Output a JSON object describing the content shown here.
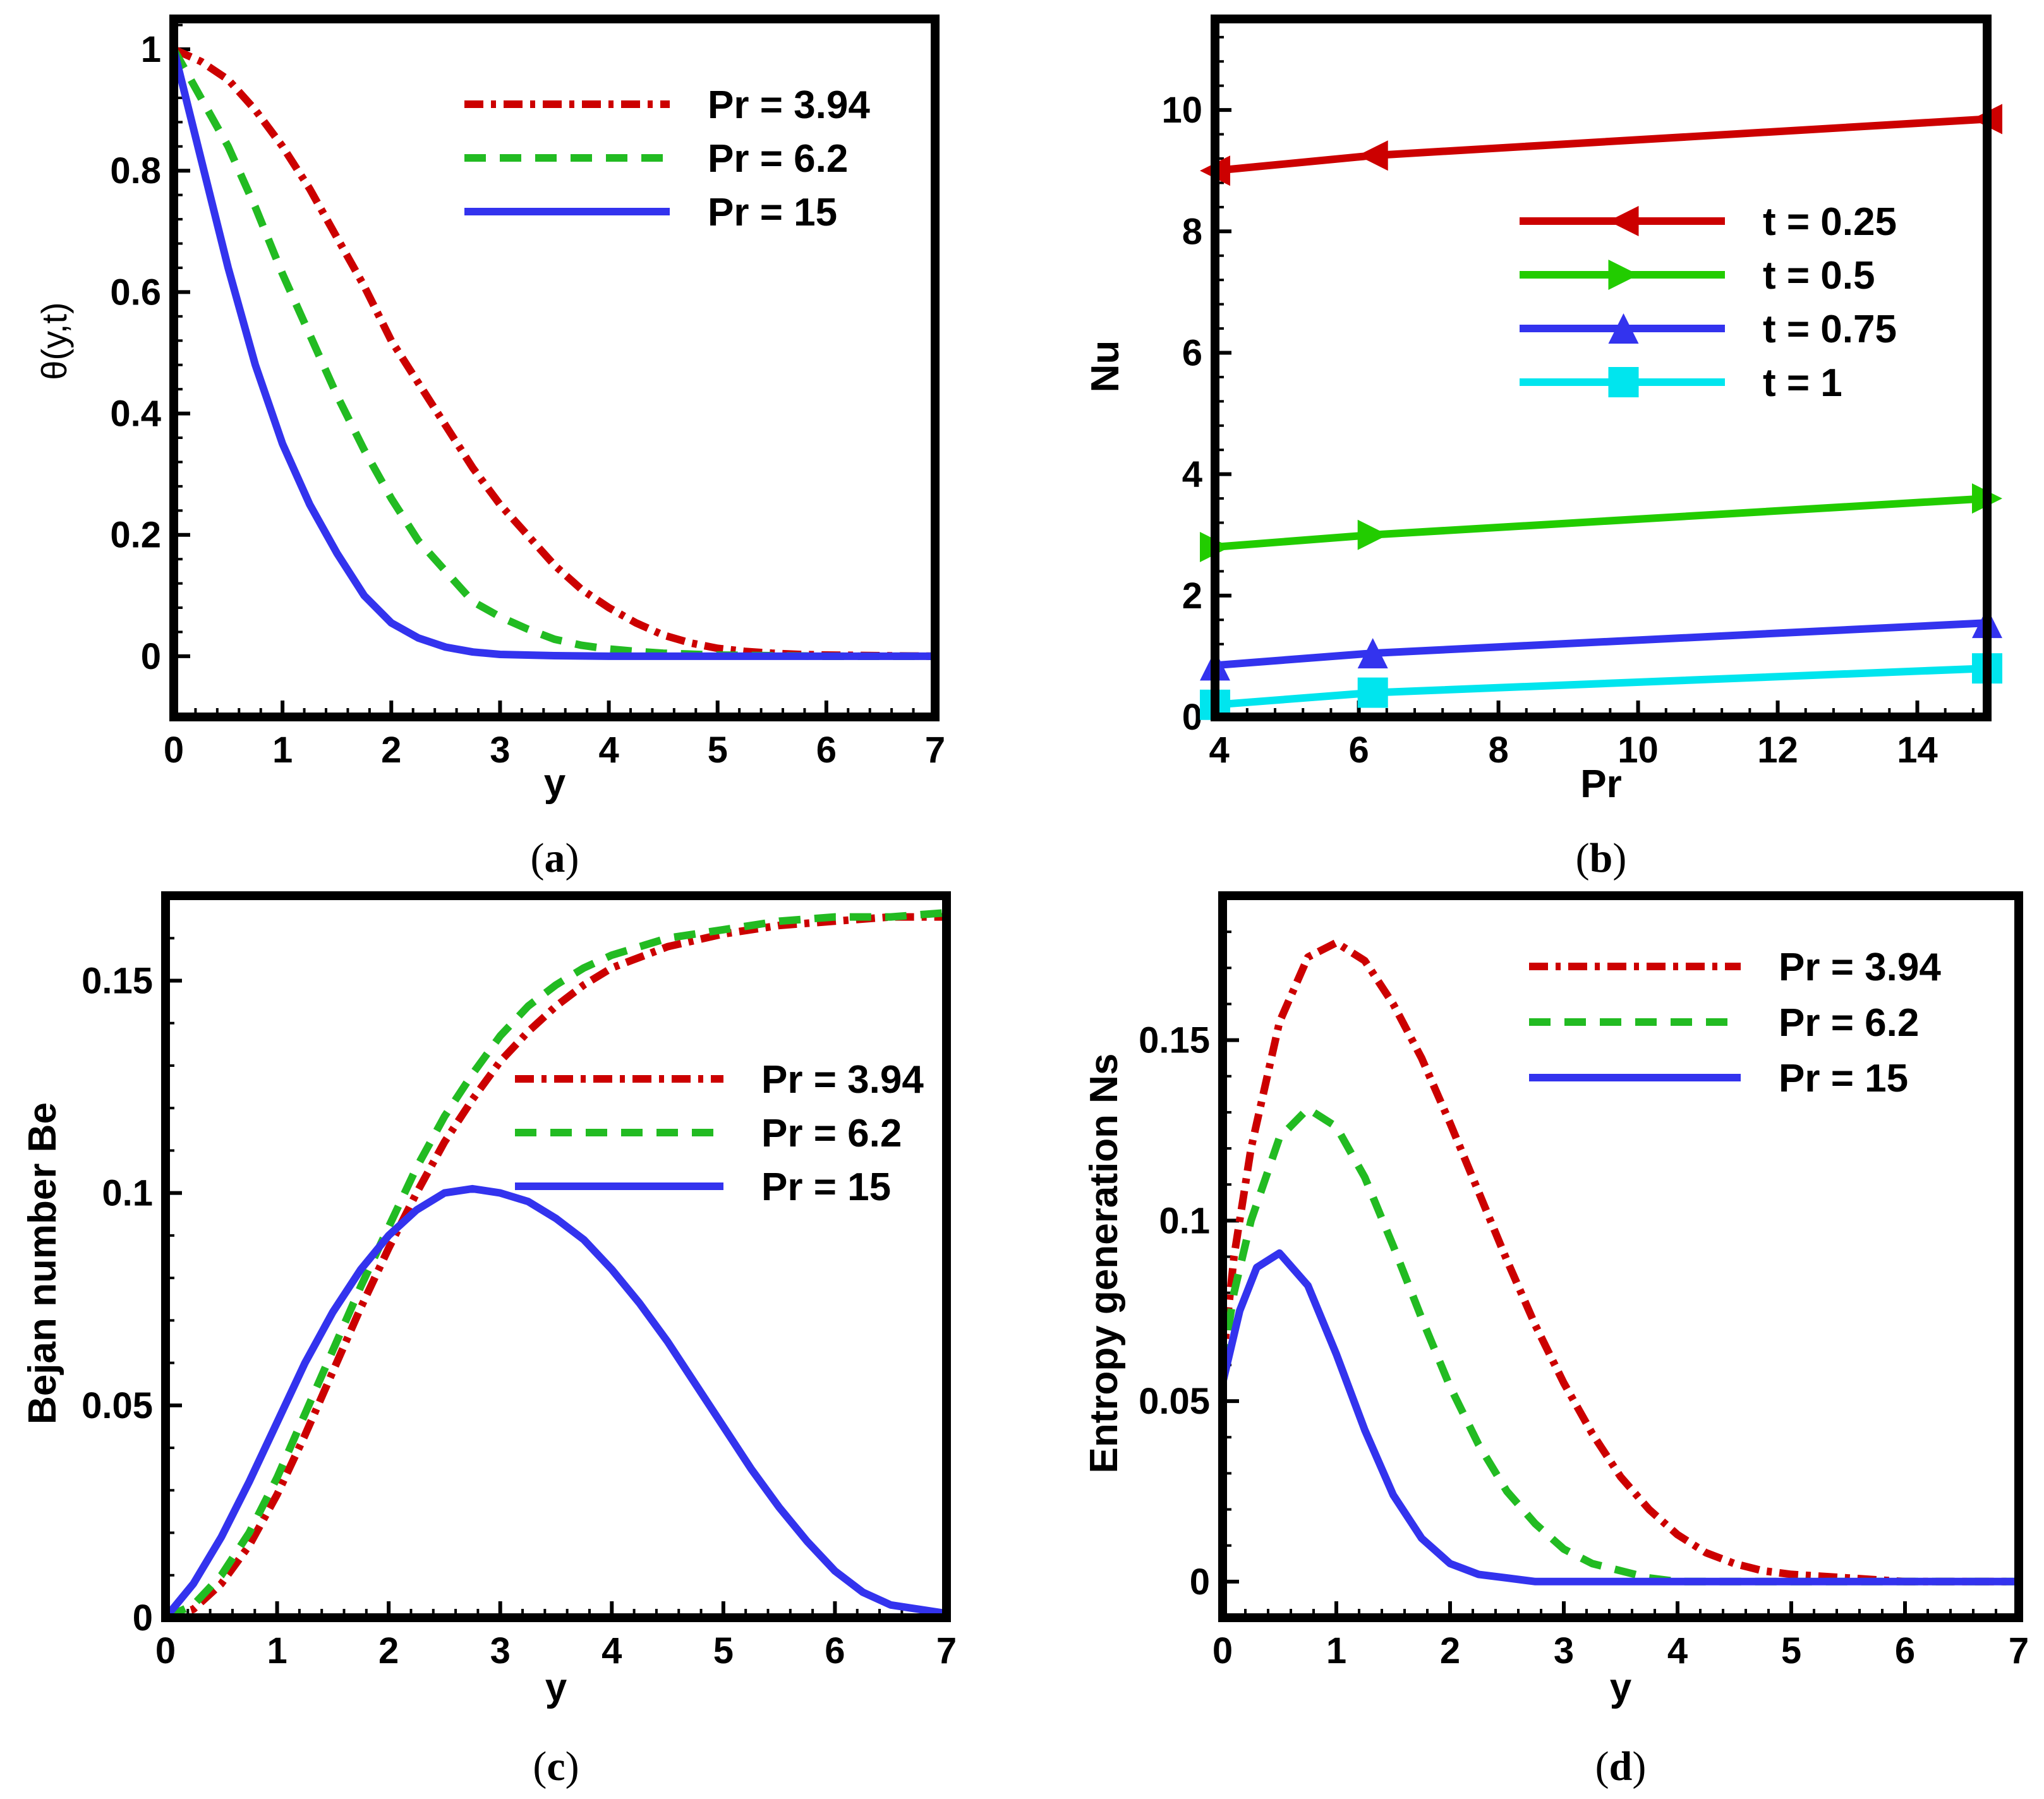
{
  "chart_data": [
    {
      "id": "a",
      "type": "line",
      "caption": "a",
      "xlabel": "y",
      "ylabel": "θ(y,t)",
      "xlim": [
        0,
        7
      ],
      "ylim": [
        -0.1,
        1.05
      ],
      "xticks": [
        0,
        1,
        2,
        3,
        4,
        5,
        6,
        7
      ],
      "yticks": [
        0,
        0.2,
        0.4,
        0.6,
        0.8,
        1
      ],
      "ytick_labels": [
        "0",
        "0.2",
        "0.4",
        "0.6",
        "0.8",
        "1"
      ],
      "legend": "top-right",
      "series": [
        {
          "name": "Pr = 3.94",
          "color": "#cc0000",
          "style": "dashdot",
          "x": [
            0,
            0.25,
            0.5,
            0.75,
            1,
            1.25,
            1.5,
            1.75,
            2,
            2.25,
            2.5,
            2.75,
            3,
            3.25,
            3.5,
            3.75,
            4,
            4.25,
            4.5,
            4.75,
            5,
            5.25,
            5.5,
            5.75,
            6,
            6.5,
            7
          ],
          "y": [
            1,
            0.98,
            0.95,
            0.9,
            0.84,
            0.77,
            0.69,
            0.61,
            0.52,
            0.45,
            0.38,
            0.31,
            0.25,
            0.2,
            0.15,
            0.11,
            0.08,
            0.055,
            0.035,
            0.022,
            0.013,
            0.008,
            0.005,
            0.003,
            0.002,
            0.001,
            0
          ]
        },
        {
          "name": "Pr = 6.2",
          "color": "#22bb22",
          "style": "dashed",
          "x": [
            0,
            0.25,
            0.5,
            0.75,
            1,
            1.25,
            1.5,
            1.75,
            2,
            2.25,
            2.5,
            2.75,
            3,
            3.25,
            3.5,
            3.75,
            4,
            4.25,
            4.5,
            5,
            5.5,
            6,
            7
          ],
          "y": [
            1,
            0.92,
            0.84,
            0.74,
            0.63,
            0.53,
            0.43,
            0.34,
            0.26,
            0.19,
            0.14,
            0.09,
            0.065,
            0.045,
            0.028,
            0.018,
            0.012,
            0.008,
            0.005,
            0.002,
            0.001,
            0,
            0
          ]
        },
        {
          "name": "Pr = 15",
          "color": "#3333ee",
          "style": "solid",
          "x": [
            0,
            0.25,
            0.5,
            0.75,
            1,
            1.25,
            1.5,
            1.75,
            2,
            2.25,
            2.5,
            2.75,
            3,
            3.5,
            4,
            5,
            6,
            7
          ],
          "y": [
            1,
            0.82,
            0.64,
            0.48,
            0.35,
            0.25,
            0.17,
            0.1,
            0.055,
            0.03,
            0.015,
            0.007,
            0.003,
            0.001,
            0,
            0,
            0,
            0
          ]
        }
      ]
    },
    {
      "id": "b",
      "type": "line",
      "caption": "b",
      "xlabel": "Pr",
      "ylabel": "Nu",
      "xlim": [
        3.94,
        15
      ],
      "ylim": [
        0,
        11.5
      ],
      "xticks": [
        4,
        6,
        8,
        10,
        12,
        14
      ],
      "yticks": [
        0,
        2,
        4,
        6,
        8,
        10
      ],
      "ytick_labels": [
        "0",
        "2",
        "4",
        "6",
        "8",
        "10"
      ],
      "legend": "center-right",
      "series": [
        {
          "name": "t = 0.25",
          "color": "#cc0000",
          "marker": "triangle-left",
          "x": [
            3.94,
            6.2,
            15
          ],
          "y": [
            9.0,
            9.25,
            9.85
          ]
        },
        {
          "name": "t = 0.5",
          "color": "#22cc00",
          "marker": "triangle-right",
          "x": [
            3.94,
            6.2,
            15
          ],
          "y": [
            2.8,
            3.0,
            3.6
          ]
        },
        {
          "name": "t = 0.75",
          "color": "#3333ee",
          "marker": "triangle-up",
          "x": [
            3.94,
            6.2,
            15
          ],
          "y": [
            0.85,
            1.05,
            1.55
          ]
        },
        {
          "name": "t = 1",
          "color": "#00e5ee",
          "marker": "square",
          "x": [
            3.94,
            6.2,
            15
          ],
          "y": [
            0.2,
            0.4,
            0.8
          ]
        }
      ]
    },
    {
      "id": "c",
      "type": "line",
      "caption": "c",
      "xlabel": "y",
      "ylabel": "Bejan number Be",
      "xlim": [
        0,
        7
      ],
      "ylim": [
        0,
        0.17
      ],
      "xticks": [
        0,
        1,
        2,
        3,
        4,
        5,
        6,
        7
      ],
      "yticks": [
        0,
        0.05,
        0.1,
        0.15
      ],
      "ytick_labels": [
        "0",
        "0.05",
        "0.1",
        "0.15"
      ],
      "legend": "center-right",
      "series": [
        {
          "name": "Pr = 3.94",
          "color": "#cc0000",
          "style": "dashdot",
          "x": [
            0,
            0.25,
            0.5,
            0.75,
            1,
            1.25,
            1.5,
            1.75,
            2,
            2.25,
            2.5,
            2.75,
            3,
            3.25,
            3.5,
            3.75,
            4,
            4.5,
            5,
            5.5,
            6,
            6.5,
            7
          ],
          "y": [
            0,
            0.002,
            0.008,
            0.017,
            0.029,
            0.043,
            0.058,
            0.073,
            0.087,
            0.1,
            0.112,
            0.122,
            0.131,
            0.138,
            0.144,
            0.149,
            0.153,
            0.158,
            0.161,
            0.163,
            0.164,
            0.165,
            0.165
          ]
        },
        {
          "name": "Pr = 6.2",
          "color": "#22bb22",
          "style": "dashed",
          "x": [
            0,
            0.25,
            0.5,
            0.75,
            1,
            1.25,
            1.5,
            1.75,
            2,
            2.25,
            2.5,
            2.75,
            3,
            3.25,
            3.5,
            3.75,
            4,
            4.5,
            5,
            5.5,
            6,
            6.5,
            7
          ],
          "y": [
            0,
            0.003,
            0.01,
            0.02,
            0.033,
            0.048,
            0.063,
            0.078,
            0.092,
            0.106,
            0.118,
            0.128,
            0.137,
            0.144,
            0.149,
            0.153,
            0.156,
            0.16,
            0.162,
            0.164,
            0.165,
            0.165,
            0.166
          ]
        },
        {
          "name": "Pr = 15",
          "color": "#3333ee",
          "style": "solid",
          "x": [
            0,
            0.25,
            0.5,
            0.75,
            1,
            1.25,
            1.5,
            1.75,
            2,
            2.25,
            2.5,
            2.75,
            3,
            3.25,
            3.5,
            3.75,
            4,
            4.25,
            4.5,
            4.75,
            5,
            5.25,
            5.5,
            5.75,
            6,
            6.25,
            6.5,
            6.75,
            7
          ],
          "y": [
            0,
            0.008,
            0.019,
            0.032,
            0.046,
            0.06,
            0.072,
            0.082,
            0.09,
            0.096,
            0.1,
            0.101,
            0.1,
            0.098,
            0.094,
            0.089,
            0.082,
            0.074,
            0.065,
            0.055,
            0.045,
            0.035,
            0.026,
            0.018,
            0.011,
            0.006,
            0.003,
            0.002,
            0.001
          ]
        }
      ]
    },
    {
      "id": "d",
      "type": "line",
      "caption": "d",
      "xlabel": "y",
      "ylabel": "Entropy generation Ns",
      "xlim": [
        0,
        7
      ],
      "ylim": [
        -0.01,
        0.19
      ],
      "xticks": [
        0,
        1,
        2,
        3,
        4,
        5,
        6,
        7
      ],
      "yticks": [
        0,
        0.05,
        0.1,
        0.15
      ],
      "ytick_labels": [
        "0",
        "0.05",
        "0.1",
        "0.15"
      ],
      "legend": "top-right",
      "series": [
        {
          "name": "Pr = 3.94",
          "color": "#cc0000",
          "style": "dashdot",
          "x": [
            0,
            0.1,
            0.25,
            0.5,
            0.75,
            1,
            1.25,
            1.5,
            1.75,
            2,
            2.25,
            2.5,
            2.75,
            3,
            3.25,
            3.5,
            3.75,
            4,
            4.25,
            4.5,
            4.75,
            5,
            5.5,
            6,
            7
          ],
          "y": [
            0.06,
            0.09,
            0.12,
            0.155,
            0.173,
            0.177,
            0.172,
            0.16,
            0.145,
            0.127,
            0.108,
            0.089,
            0.071,
            0.055,
            0.041,
            0.029,
            0.02,
            0.013,
            0.008,
            0.005,
            0.003,
            0.002,
            0.001,
            0,
            0
          ]
        },
        {
          "name": "Pr = 6.2",
          "color": "#22bb22",
          "style": "dashed",
          "x": [
            0,
            0.1,
            0.25,
            0.5,
            0.75,
            1,
            1.25,
            1.5,
            1.75,
            2,
            2.25,
            2.5,
            2.75,
            3,
            3.25,
            3.5,
            3.75,
            4,
            4.5,
            5,
            6,
            7
          ],
          "y": [
            0.06,
            0.08,
            0.1,
            0.123,
            0.131,
            0.126,
            0.112,
            0.093,
            0.073,
            0.054,
            0.038,
            0.025,
            0.016,
            0.009,
            0.005,
            0.003,
            0.001,
            0,
            0,
            0,
            0,
            0
          ]
        },
        {
          "name": "Pr = 15",
          "color": "#3333ee",
          "style": "solid",
          "x": [
            0,
            0.15,
            0.3,
            0.5,
            0.75,
            1,
            1.25,
            1.5,
            1.75,
            2,
            2.25,
            2.5,
            2.75,
            3,
            3.5,
            4,
            5,
            6,
            7
          ],
          "y": [
            0.055,
            0.075,
            0.087,
            0.091,
            0.082,
            0.063,
            0.042,
            0.024,
            0.012,
            0.005,
            0.002,
            0.001,
            0,
            0,
            0,
            0,
            0,
            0,
            0
          ]
        }
      ]
    }
  ]
}
